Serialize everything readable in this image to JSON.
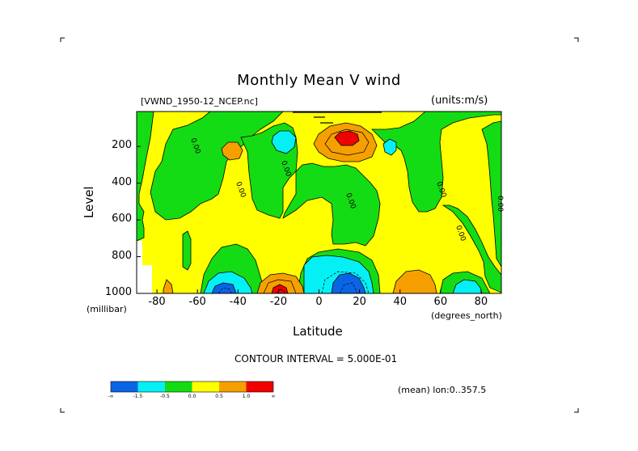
{
  "chart_data": {
    "type": "heatmap",
    "title": "Monthly Mean V wind",
    "source_label": "[VWND_1950-12_NCEP.nc]",
    "units_label": "(units:m/s)",
    "xlabel": "Latitude",
    "xunit": "(degrees_north)",
    "ylabel": "Level",
    "yunit": "(millibar)",
    "xlim": [
      -90,
      90
    ],
    "ylim": [
      1000,
      10
    ],
    "y_inverted": true,
    "x_ticks": [
      "-80",
      "-60",
      "-40",
      "-20",
      "0",
      "20",
      "40",
      "60",
      "80"
    ],
    "x_tick_values": [
      -80,
      -60,
      -40,
      -20,
      0,
      20,
      40,
      60,
      80
    ],
    "y_ticks": [
      "200",
      "400",
      "600",
      "800",
      "1000"
    ],
    "y_tick_values": [
      200,
      400,
      600,
      800,
      1000
    ],
    "contour_interval_text": "CONTOUR INTERVAL = 5.000E-01",
    "mean_label": "(mean) lon:0..357.5",
    "contour_inline_labels": [
      "0.00",
      "0.00",
      "0.00",
      "0.00",
      "0.00",
      "0.00"
    ],
    "colorbar": {
      "labels": [
        "-∞",
        "-1.5",
        "-0.5",
        "0.0",
        "0.5",
        "1.0",
        "∞"
      ],
      "colors": [
        "#0a64e6",
        "#05f0f5",
        "#14dc14",
        "#ffff00",
        "#f5a000",
        "#f00000"
      ]
    },
    "features": [
      {
        "kind": "positive",
        "level": "max > 1.0",
        "lat": 15,
        "pressure": 170
      },
      {
        "kind": "positive",
        "level": "max > 1.0",
        "lat": -20,
        "pressure": 1000
      },
      {
        "kind": "positive",
        "level": "0.5-1.0",
        "lat": -42,
        "pressure": 200
      },
      {
        "kind": "positive",
        "level": "0.5-1.0",
        "lat": 57,
        "pressure": 960
      },
      {
        "kind": "negative",
        "level": "min < -1.5",
        "lat": 12,
        "pressure": 960
      },
      {
        "kind": "negative",
        "level": "min < -1.5",
        "lat": -50,
        "pressure": 980
      },
      {
        "kind": "negative",
        "level": "-1.5 to -0.5",
        "lat": -25,
        "pressure": 170
      },
      {
        "kind": "negative",
        "level": "-1.5 to -0.5",
        "lat": 38,
        "pressure": 180
      },
      {
        "kind": "negative",
        "level": "-1.5 to -0.5",
        "lat": 77,
        "pressure": 990
      }
    ]
  }
}
